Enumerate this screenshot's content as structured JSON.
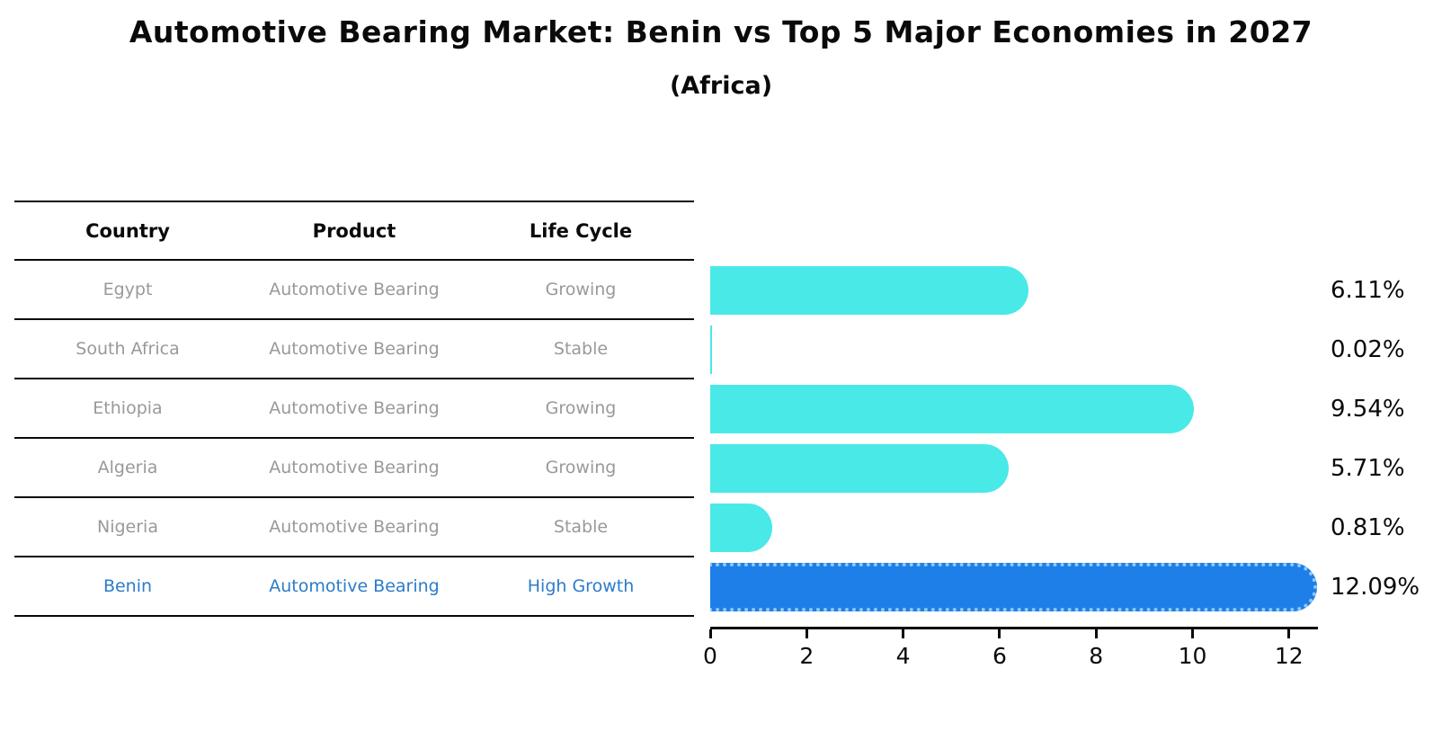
{
  "title": "Automotive Bearing Market: Benin vs Top 5 Major Economies in 2027",
  "subtitle": "(Africa)",
  "table": {
    "headers": [
      "Country",
      "Product",
      "Life Cycle"
    ],
    "rows": [
      {
        "country": "Egypt",
        "product": "Automotive Bearing",
        "life_cycle": "Growing",
        "highlight": false
      },
      {
        "country": "South Africa",
        "product": "Automotive Bearing",
        "life_cycle": "Stable",
        "highlight": false
      },
      {
        "country": "Ethiopia",
        "product": "Automotive Bearing",
        "life_cycle": "Growing",
        "highlight": false
      },
      {
        "country": "Algeria",
        "product": "Automotive Bearing",
        "life_cycle": "Growing",
        "highlight": false
      },
      {
        "country": "Nigeria",
        "product": "Automotive Bearing",
        "life_cycle": "Stable",
        "highlight": false
      },
      {
        "country": "Benin",
        "product": "Automotive Bearing",
        "life_cycle": "High Growth",
        "highlight": true
      }
    ]
  },
  "chart_data": {
    "type": "bar",
    "orientation": "horizontal",
    "title": "Automotive Bearing Market: Benin vs Top 5 Major Economies in 2027",
    "subtitle": "(Africa)",
    "categories": [
      "Egypt",
      "South Africa",
      "Ethiopia",
      "Algeria",
      "Nigeria",
      "Benin"
    ],
    "values": [
      6.11,
      0.02,
      9.54,
      5.71,
      0.81,
      12.09
    ],
    "value_labels": [
      "6.11%",
      "0.02%",
      "9.54%",
      "5.71%",
      "0.81%",
      "12.09%"
    ],
    "x_ticks": [
      0,
      2,
      4,
      6,
      8,
      10,
      12
    ],
    "xlim": [
      0,
      12.6
    ],
    "grid": false,
    "legend": false,
    "bar_color": "#49e9e7",
    "highlight_bar_color": "#1e7fe8",
    "highlight_edge_color": "#8ec7f8",
    "highlight_index": 5,
    "highlight_text_color": "#2b7cc9",
    "body_text_color": "#999999",
    "axis_color": "#0a0a0a"
  }
}
